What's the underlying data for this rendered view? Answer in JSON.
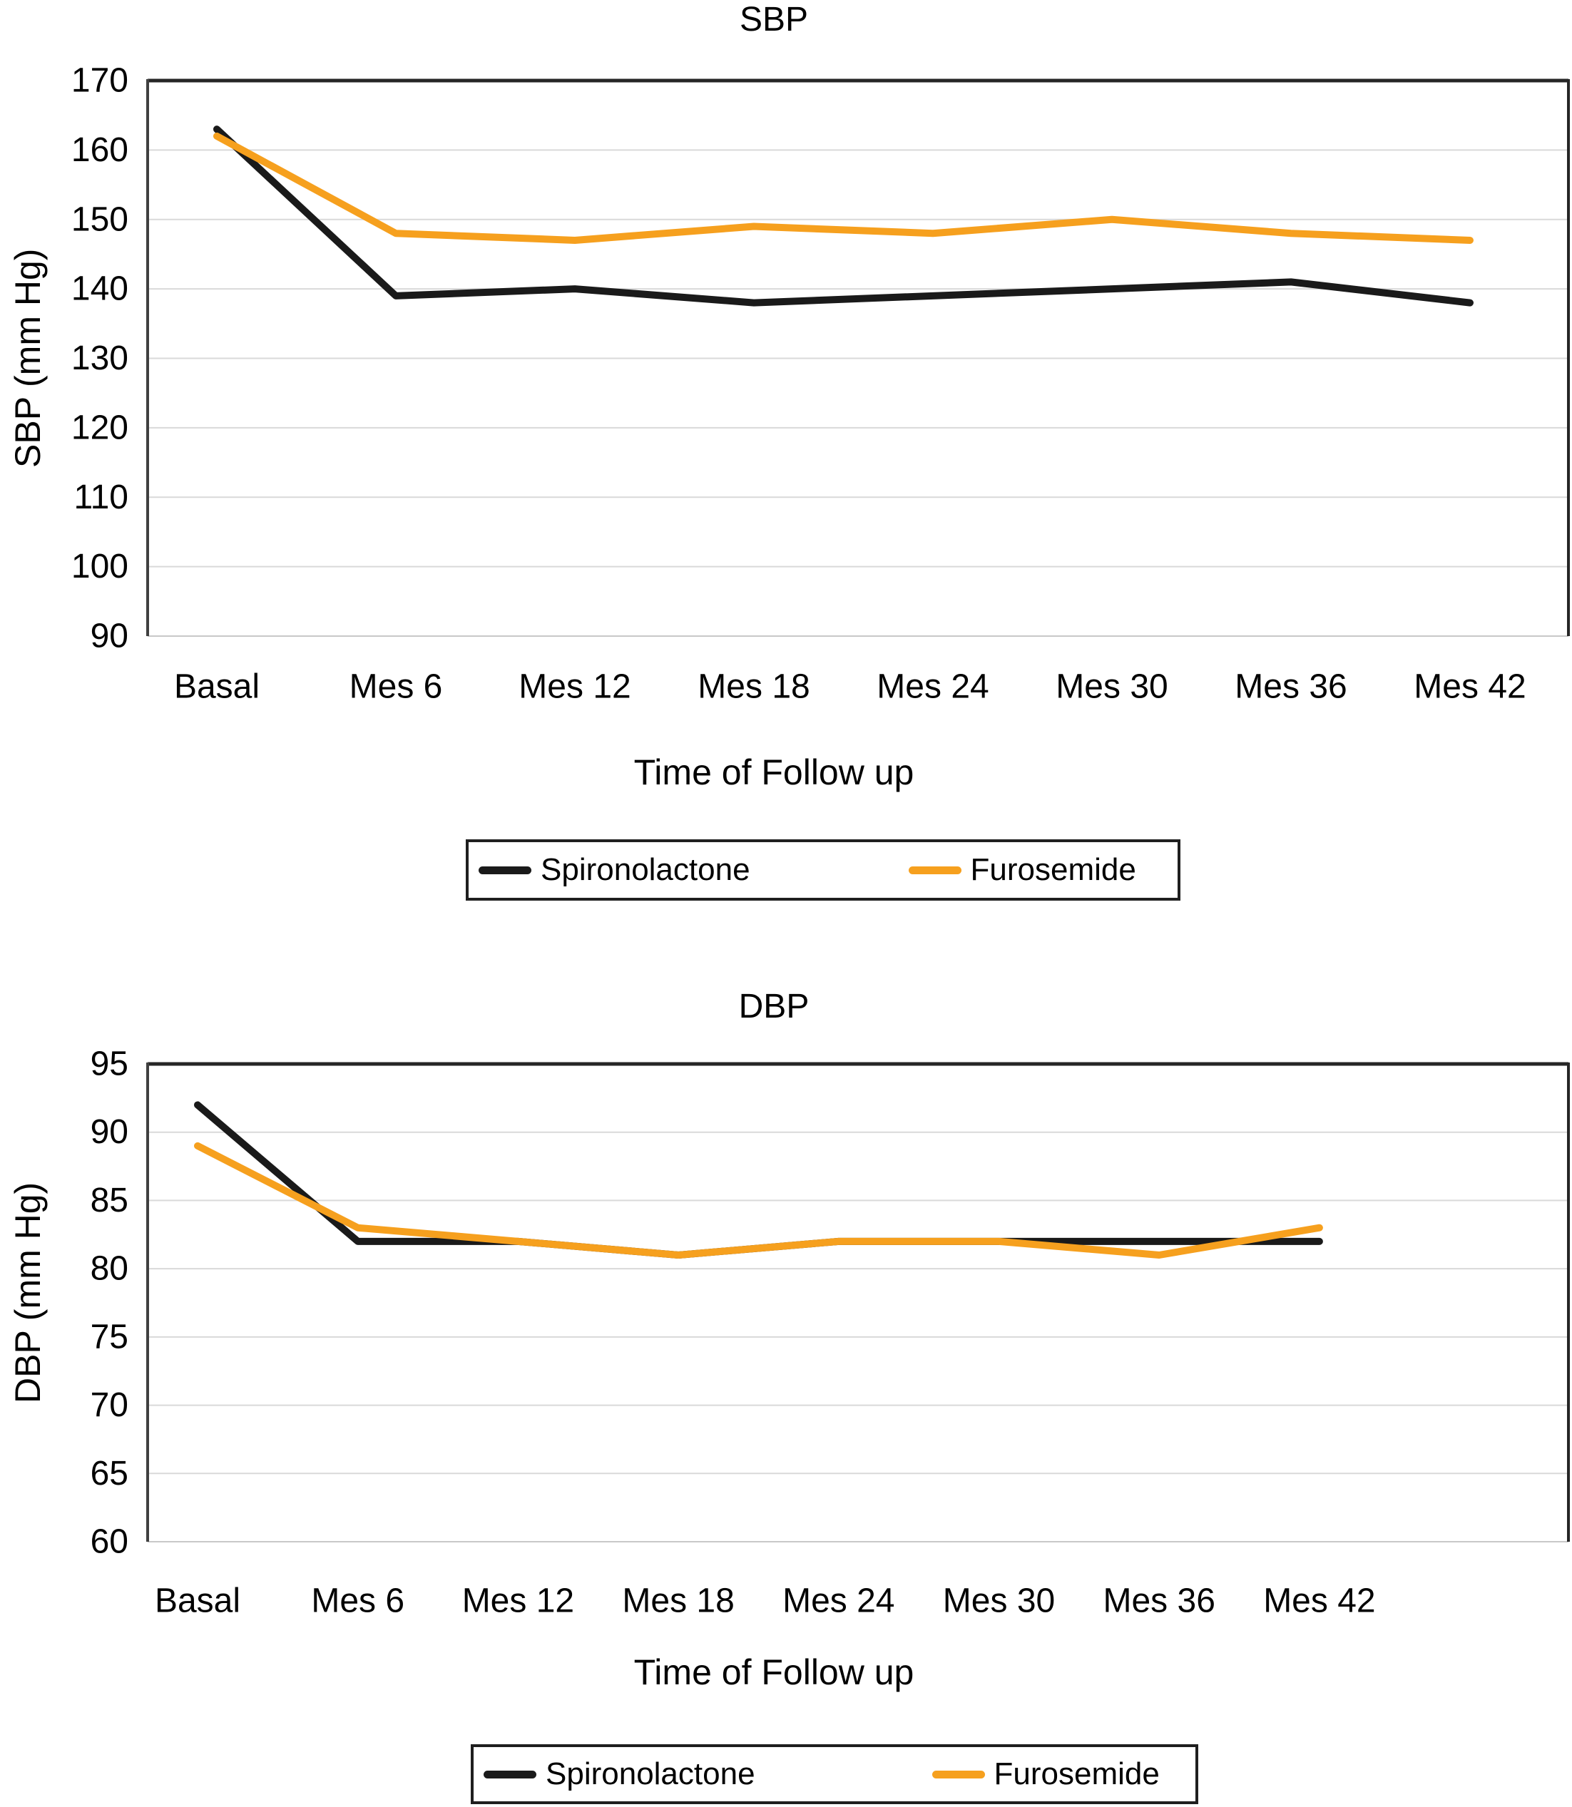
{
  "figure": {
    "background": "#ffffff",
    "accent_orange": "#F6A01E",
    "accent_black": "#1A1A1A"
  },
  "chart_data": [
    {
      "type": "line",
      "title": "SBP",
      "ylabel": "SBP (mm Hg)",
      "xlabel": "Time of Follow up",
      "categories": [
        "Basal",
        "Mes 6",
        "Mes 12",
        "Mes 18",
        "Mes 24",
        "Mes 30",
        "Mes 36",
        "Mes 42"
      ],
      "ylim": [
        90,
        170
      ],
      "yticks": [
        170,
        160,
        150,
        140,
        130,
        120,
        110,
        100,
        90
      ],
      "grid": true,
      "legend_position": "below",
      "grid_color": "#D9D9D9",
      "frame_color": "#262626",
      "axis_color": "#404040",
      "series": [
        {
          "name": "Spironolactone",
          "color": "#1A1A1A",
          "values": [
            163,
            139,
            140,
            138,
            139,
            140,
            141,
            138
          ]
        },
        {
          "name": "Furosemide",
          "color": "#F6A01E",
          "values": [
            162,
            148,
            147,
            149,
            148,
            150,
            148,
            147
          ]
        }
      ]
    },
    {
      "type": "line",
      "title": "DBP",
      "ylabel": "DBP (mm Hg)",
      "xlabel": "Time of Follow up",
      "categories": [
        "Basal",
        "Mes 6",
        "Mes 12",
        "Mes 18",
        "Mes 24",
        "Mes 30",
        "Mes 36",
        "Mes 42"
      ],
      "ylim": [
        60,
        95
      ],
      "yticks": [
        95,
        90,
        85,
        80,
        75,
        70,
        65,
        60
      ],
      "grid": true,
      "legend_position": "below",
      "grid_color": "#D9D9D9",
      "frame_color": "#262626",
      "axis_color": "#404040",
      "series": [
        {
          "name": "Spironolactone",
          "color": "#1A1A1A",
          "values": [
            92,
            82,
            82,
            81,
            82,
            82,
            82,
            82
          ]
        },
        {
          "name": "Furosemide",
          "color": "#F6A01E",
          "values": [
            89,
            83,
            82,
            81,
            82,
            82,
            81,
            83
          ]
        }
      ]
    }
  ]
}
